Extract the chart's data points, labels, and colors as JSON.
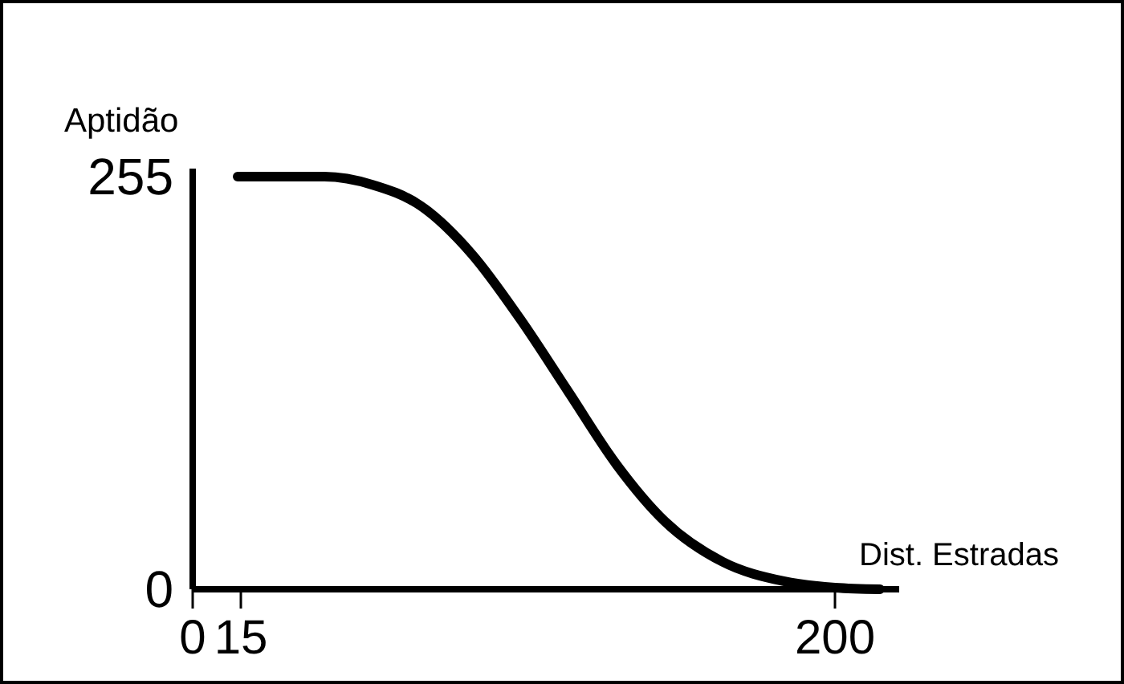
{
  "chart_data": {
    "type": "line",
    "xlabel": "Dist. Estradas",
    "ylabel": "Aptidão",
    "x": [
      14,
      41,
      56,
      71,
      87,
      102,
      117,
      132,
      147,
      165,
      184,
      200,
      214
    ],
    "series": [
      {
        "color": "#000000",
        "values": [
          255,
          255,
          250,
          237,
          207,
          167,
          122,
          77,
          42,
          17,
          5,
          1,
          0
        ]
      }
    ],
    "xlim": [
      0,
      220
    ],
    "xticks": [
      0,
      15,
      200
    ],
    "ylim": [
      0,
      260
    ],
    "yticks": [
      0,
      255
    ],
    "marker": "none",
    "line_style": "solid",
    "grid": false
  }
}
